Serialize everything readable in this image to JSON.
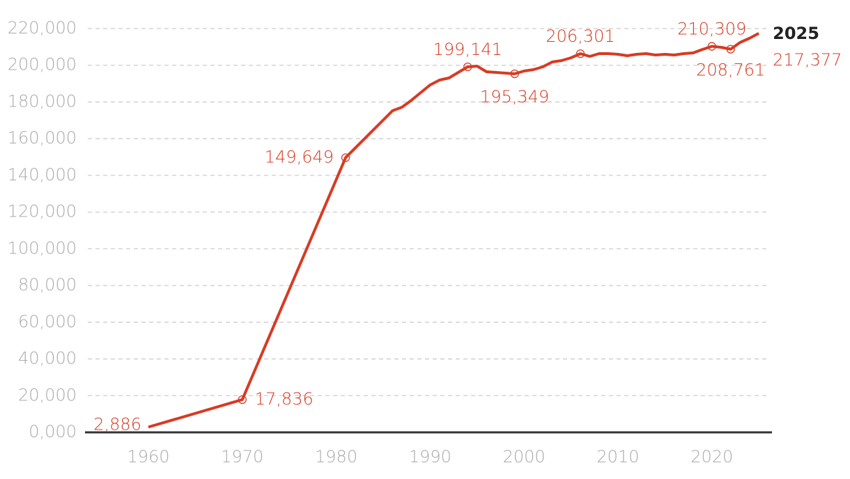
{
  "chart_data": {
    "type": "line",
    "x": [
      1960,
      1970,
      1981,
      1986,
      1987,
      1988,
      1989,
      1990,
      1991,
      1992,
      1993,
      1994,
      1995,
      1996,
      1997,
      1998,
      1999,
      2000,
      2001,
      2002,
      2003,
      2004,
      2005,
      2006,
      2007,
      2008,
      2009,
      2010,
      2011,
      2012,
      2013,
      2014,
      2015,
      2016,
      2017,
      2018,
      2019,
      2020,
      2021,
      2022,
      2023,
      2024,
      2025
    ],
    "series": [
      {
        "color": "#d83a22",
        "values": [
          2886,
          17836,
          149649,
          175240,
          177140,
          180900,
          185100,
          189280,
          191930,
          193070,
          196100,
          199141,
          199520,
          196480,
          196100,
          195720,
          195349,
          196860,
          197620,
          199140,
          201790,
          202550,
          204070,
          206301,
          204830,
          206340,
          206340,
          205970,
          205210,
          205970,
          206340,
          205590,
          205970,
          205590,
          206340,
          206720,
          208620,
          210309,
          209760,
          208761,
          212410,
          214690,
          217377
        ],
        "value_labels": [
          "2,886",
          "17,836",
          "149,649",
          null,
          null,
          null,
          null,
          null,
          null,
          null,
          null,
          "199,141",
          null,
          null,
          null,
          null,
          "195,349",
          null,
          null,
          null,
          null,
          null,
          null,
          "206,301",
          null,
          null,
          null,
          null,
          null,
          null,
          null,
          null,
          null,
          null,
          null,
          null,
          null,
          "210,309",
          null,
          "208,761",
          null,
          null,
          "217,377"
        ]
      }
    ],
    "xlim": [
      1953.25,
      2026.4
    ],
    "xticks": [
      1960,
      1970,
      1980,
      1990,
      2000,
      2010,
      2020
    ],
    "ylim": [
      0,
      220000
    ],
    "yticks": [
      {
        "value": 0,
        "label": "0,000"
      },
      {
        "value": 20000,
        "label": "20,000"
      },
      {
        "value": 40000,
        "label": "40,000"
      },
      {
        "value": 60000,
        "label": "60,000"
      },
      {
        "value": 80000,
        "label": "80,000"
      },
      {
        "value": 100000,
        "label": "100,000"
      },
      {
        "value": 120000,
        "label": "120,000"
      },
      {
        "value": 140000,
        "label": "140,000"
      },
      {
        "value": 160000,
        "label": "160,000"
      },
      {
        "value": 180000,
        "label": "180,000"
      },
      {
        "value": 200000,
        "label": "200,000"
      },
      {
        "value": 220000,
        "label": "220,000"
      }
    ],
    "grid": true
  }
}
